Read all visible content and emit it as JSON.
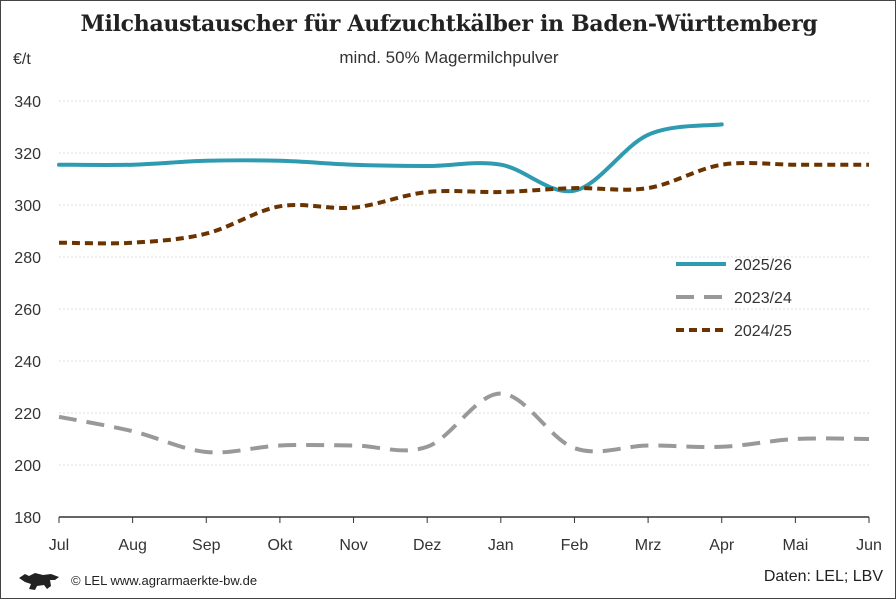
{
  "chart_data": {
    "type": "line",
    "title": "Milchaustauscher für Aufzuchtkälber in Baden-Württemberg",
    "subtitle": "mind. 50% Magermilchpulver",
    "ylabel": "€/t",
    "xlabel": "",
    "categories": [
      "Jul",
      "Aug",
      "Sep",
      "Okt",
      "Nov",
      "Dez",
      "Jan",
      "Feb",
      "Mrz",
      "Apr",
      "Mai",
      "Jun"
    ],
    "ylim": [
      180,
      340
    ],
    "yticks": [
      180,
      200,
      220,
      240,
      260,
      280,
      300,
      320,
      340
    ],
    "grid": true,
    "legend_position": "right",
    "series": [
      {
        "name": "2025/26",
        "color": "#2e9bb0",
        "style": "solid",
        "values": [
          315.5,
          315.5,
          317,
          317,
          315.5,
          315,
          315.5,
          305.5,
          327,
          331,
          null,
          null
        ]
      },
      {
        "name": "2023/24",
        "color": "#999999",
        "style": "dashed",
        "values": [
          218.5,
          213,
          205,
          207.5,
          207.5,
          207,
          227.5,
          206.5,
          207.5,
          207,
          210,
          210
        ]
      },
      {
        "name": "2024/25",
        "color": "#6b3300",
        "style": "dotted",
        "values": [
          285.5,
          285.5,
          289,
          299.5,
          299,
          305,
          305,
          306.5,
          306.5,
          315.5,
          315.5,
          315.5
        ]
      }
    ]
  },
  "footer": {
    "copyright": "© LEL www.agrarmaerkte-bw.de",
    "source": "Daten: LEL; LBV",
    "logo_icon": "baden-wuerttemberg-lion-logo"
  }
}
